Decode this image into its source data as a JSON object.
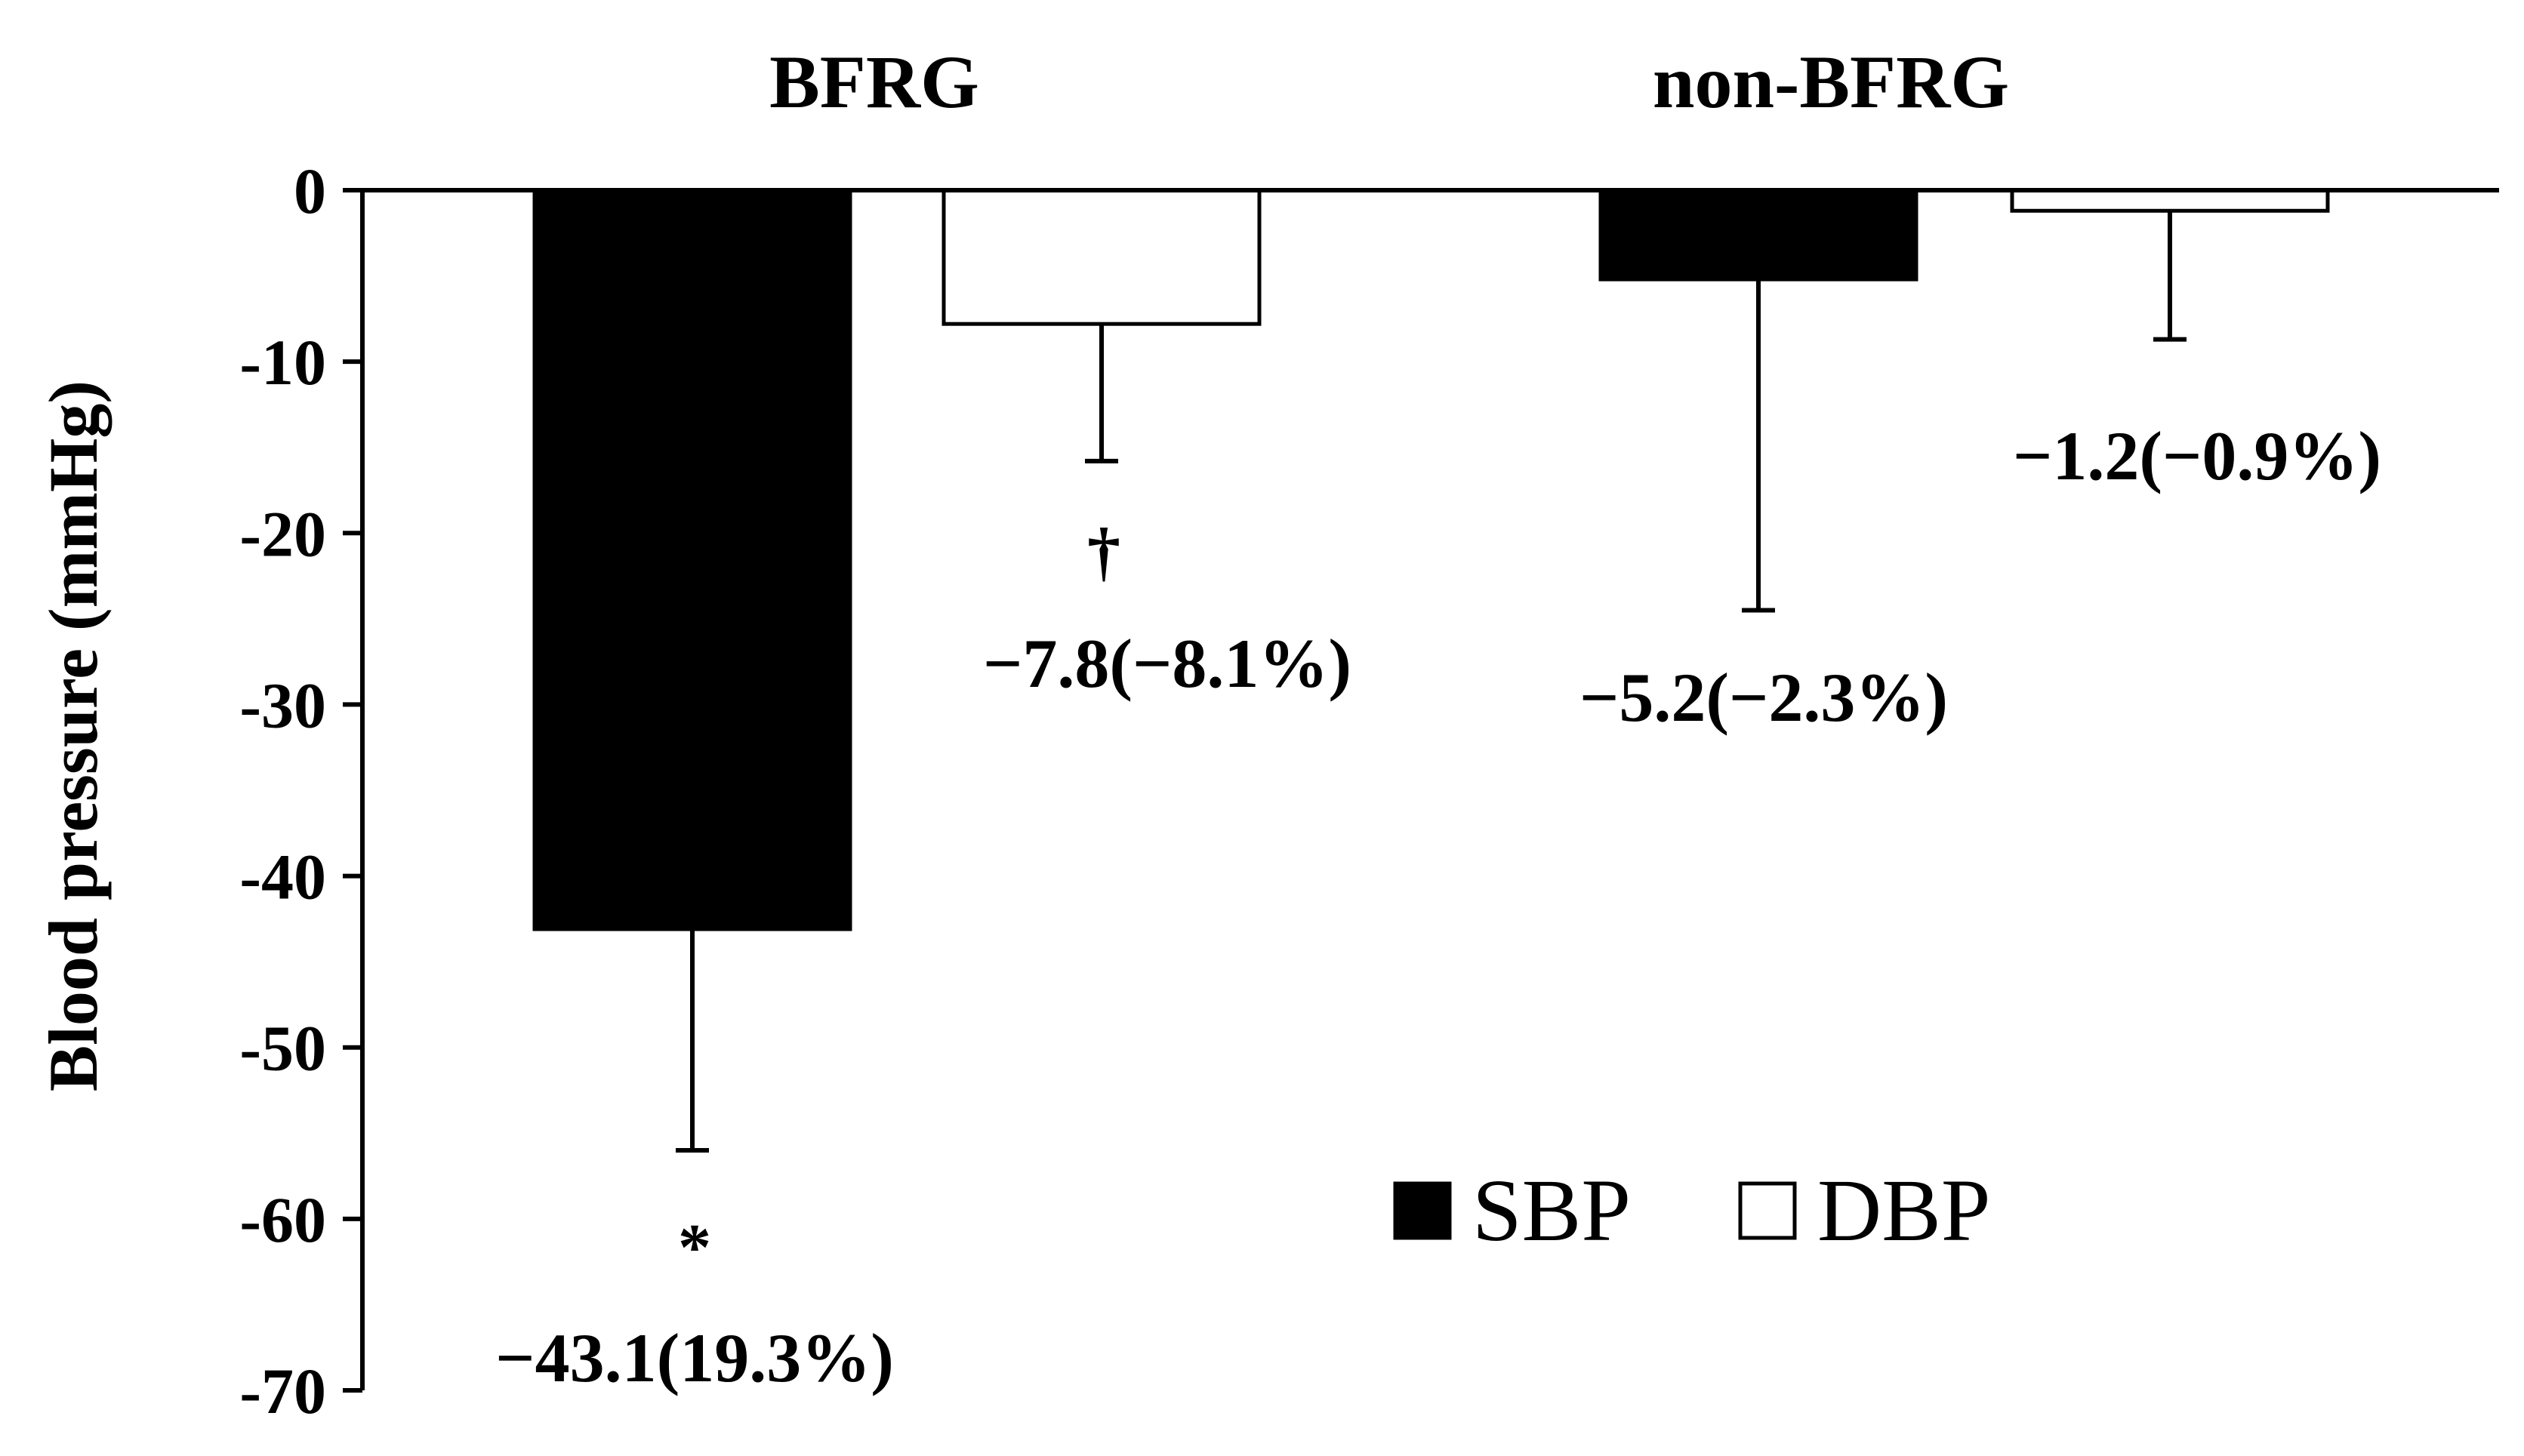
{
  "chart_data": {
    "type": "bar",
    "categories": [
      "BFRG",
      "non-BFRG"
    ],
    "ylabel": "Blood pressure (mmHg)",
    "xlabel": "",
    "ylim": [
      -70,
      0
    ],
    "yticks": [
      0,
      -10,
      -20,
      -30,
      -40,
      -50,
      -60,
      -70
    ],
    "ytick_labels": [
      "0",
      "-10",
      "-20",
      "-30",
      "-40",
      "-50",
      "-60",
      "-70"
    ],
    "grid": false,
    "legend_position": "bottom-right",
    "series": [
      {
        "name": "SBP",
        "color": "#000000",
        "values": [
          -43.1,
          -5.2
        ],
        "error_low": [
          -56.0,
          -24.5
        ],
        "labels": [
          "−43.1(19.3%)",
          "−5.2(−2.3%)"
        ],
        "markers": [
          "*",
          ""
        ]
      },
      {
        "name": "DBP",
        "color": "#ffffff",
        "values": [
          -7.8,
          -1.2
        ],
        "error_low": [
          -15.8,
          -8.7
        ],
        "labels": [
          "−7.8(−8.1%)",
          "−1.2(−0.9%)"
        ],
        "markers": [
          "†",
          ""
        ]
      }
    ]
  }
}
